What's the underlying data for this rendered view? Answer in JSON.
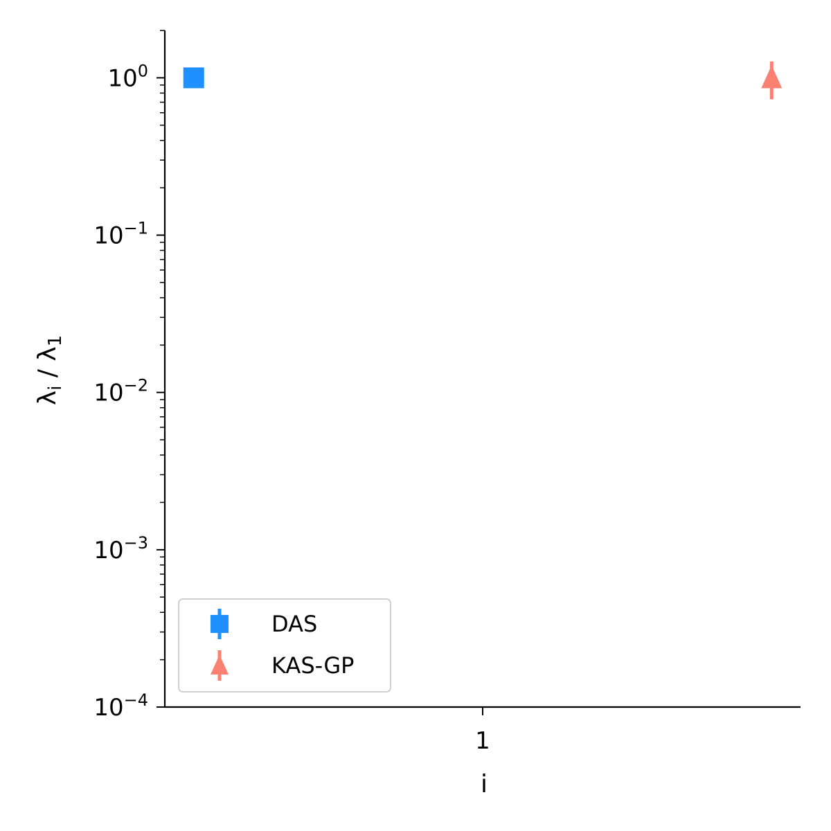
{
  "chart_data": {
    "type": "scatter",
    "xlabel": "i",
    "ylabel": "λ_i / λ_1",
    "x_ticks": [
      {
        "value": 1,
        "label": "1"
      }
    ],
    "xlim": [
      0.45,
      1.55
    ],
    "y_scale": "log",
    "ylim": [
      0.0001,
      2
    ],
    "y_ticks": [
      {
        "value": 1,
        "base": "10",
        "exp": "0"
      },
      {
        "value": 0.1,
        "base": "10",
        "exp": "−1"
      },
      {
        "value": 0.01,
        "base": "10",
        "exp": "−2"
      },
      {
        "value": 0.001,
        "base": "10",
        "exp": "−3"
      },
      {
        "value": 0.0001,
        "base": "10",
        "exp": "−4"
      }
    ],
    "grid": false,
    "legend_position": "lower-left",
    "series": [
      {
        "name": "DAS",
        "marker": "square",
        "color": "#1E90FF",
        "x": [
          0.5
        ],
        "y": [
          1.0
        ],
        "yerr_low": [
          0.88
        ],
        "yerr_high": [
          1.05
        ]
      },
      {
        "name": "KAS-GP",
        "marker": "triangle",
        "color": "#FA8072",
        "x": [
          1.5
        ],
        "y": [
          1.0
        ],
        "yerr_low": [
          0.73
        ],
        "yerr_high": [
          1.27
        ]
      }
    ]
  }
}
